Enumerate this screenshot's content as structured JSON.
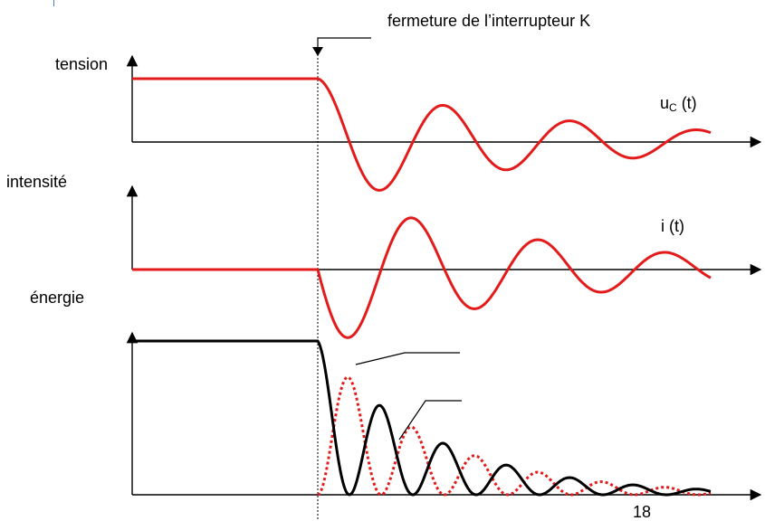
{
  "labels": {
    "tension": "tension",
    "intensite": "intensité",
    "energie": "énergie",
    "event": "fermeture de l’interrupteur K",
    "uc_main": "u",
    "uc_sub": "C",
    "uc_tail": " (t)",
    "i_t": "i (t)",
    "page_number": "18"
  },
  "colors": {
    "signal": "#e31b1b",
    "energy_solid": "#000000",
    "energy_dotted": "#e31b1b",
    "axis": "#000000",
    "accent_tick": "#4a7fbf"
  },
  "curves": {
    "switch_time": 0.0,
    "uc": {
      "pre_level": 1.0,
      "decay": 0.55,
      "period": 1.0
    },
    "i": {
      "pre_level": 0.0,
      "decay": 0.55,
      "period": 1.0
    },
    "energy": {
      "pre_level": 1.0,
      "styles": [
        "solid",
        "dotted"
      ]
    }
  }
}
